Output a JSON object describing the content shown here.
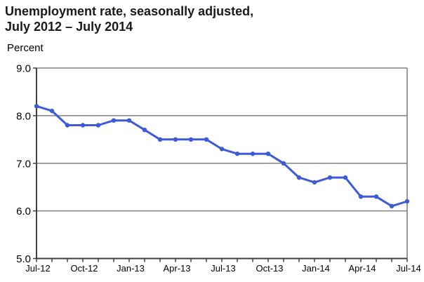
{
  "header": {
    "title_line1": "Unemployment rate, seasonally adjusted,",
    "title_line2": "July 2012 – July 2014"
  },
  "chart_data": {
    "type": "line",
    "title": "Unemployment rate, seasonally adjusted, July 2012 – July 2014",
    "ylabel": "Percent",
    "x": [
      "Jul-12",
      "Aug-12",
      "Sep-12",
      "Oct-12",
      "Nov-12",
      "Dec-12",
      "Jan-13",
      "Feb-13",
      "Mar-13",
      "Apr-13",
      "May-13",
      "Jun-13",
      "Jul-13",
      "Aug-13",
      "Sep-13",
      "Oct-13",
      "Nov-13",
      "Dec-13",
      "Jan-14",
      "Feb-14",
      "Mar-14",
      "Apr-14",
      "May-14",
      "Jun-14",
      "Jul-14"
    ],
    "series": [
      {
        "name": "Unemployment rate",
        "values": [
          8.2,
          8.1,
          7.8,
          7.8,
          7.8,
          7.9,
          7.9,
          7.7,
          7.5,
          7.5,
          7.5,
          7.5,
          7.3,
          7.2,
          7.2,
          7.2,
          7.0,
          6.7,
          6.6,
          6.7,
          6.7,
          6.3,
          6.3,
          6.1,
          6.2
        ]
      }
    ],
    "ylim": [
      5.0,
      9.0
    ],
    "y_ticks": [
      "9.0",
      "8.0",
      "7.0",
      "6.0",
      "5.0"
    ],
    "x_tick_labels": [
      "Jul-12",
      "Oct-12",
      "Jan-13",
      "Apr-13",
      "Jul-13",
      "Oct-13",
      "Jan-14",
      "Apr-14",
      "Jul-14"
    ],
    "x_tick_every": 3,
    "grid": true,
    "legend": "none",
    "line_color": "#3d5bd9",
    "grid_color": "#808080",
    "axis_color": "#3f3f3f",
    "text_color": "#000000"
  }
}
